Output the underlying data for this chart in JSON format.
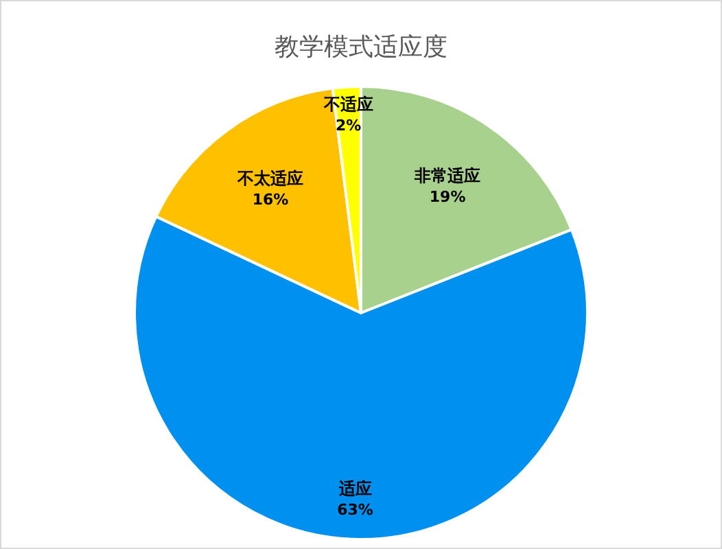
{
  "chart_data": {
    "type": "pie",
    "title": "教学模式适应度",
    "categories": [
      "非常适应",
      "适应",
      "不太适应",
      "不适应"
    ],
    "values": [
      19,
      63,
      16,
      2
    ],
    "value_labels": [
      "19%",
      "63%",
      "16%",
      "2%"
    ],
    "colors": [
      "#a9d18e",
      "#0091f0",
      "#ffc000",
      "#ffff00"
    ]
  }
}
